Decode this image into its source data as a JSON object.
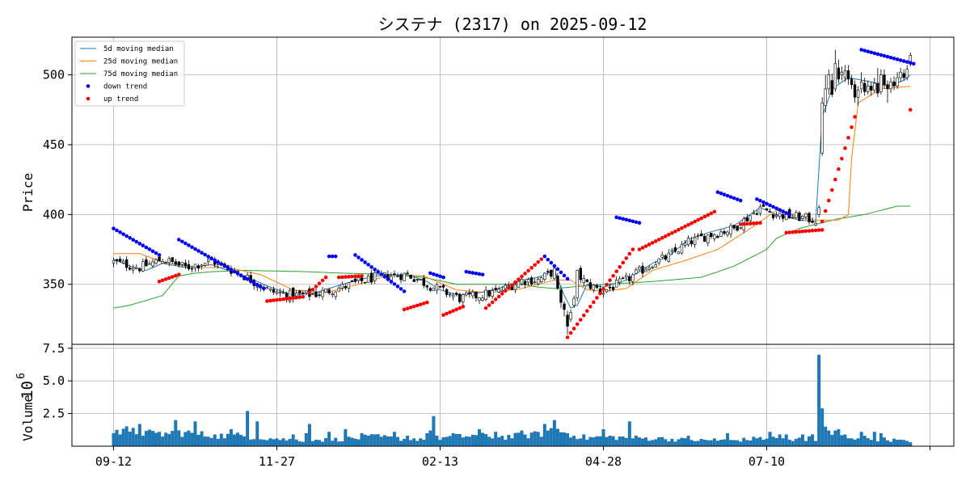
{
  "colors": {
    "ma5": "#1f77b4",
    "ma25": "#ff7f0e",
    "ma75": "#2ca02c",
    "down": "#0000ff",
    "up": "#ff0000",
    "volume": "#1f77b4",
    "grid": "#b0b0b0"
  },
  "chart_data": {
    "type": "candlestick",
    "title": "システナ (2317) on 2025-09-12",
    "price_panel": {
      "ylabel": "Price",
      "ylim": [
        307,
        527
      ],
      "yticks": [
        350,
        400,
        450,
        500
      ],
      "grid": true,
      "legend_position": "upper-left",
      "legend": [
        {
          "key": "ma5",
          "label": " 5d moving median",
          "kind": "line"
        },
        {
          "key": "ma25",
          "label": "25d moving median",
          "kind": "line"
        },
        {
          "key": "ma75",
          "label": "75d moving median",
          "kind": "line"
        },
        {
          "key": "down",
          "label": "down trend",
          "kind": "dot"
        },
        {
          "key": "up",
          "label": "up trend",
          "kind": "dot"
        }
      ]
    },
    "volume_panel": {
      "ylabel": "Volume",
      "scale_label": "10",
      "scale_exp": "6",
      "ylim": [
        0,
        7.8
      ],
      "yticks": [
        2.5,
        5.0,
        7.5
      ],
      "ytick_labels": [
        "2.5",
        "5.0",
        "7.5"
      ],
      "grid": true
    },
    "x": {
      "n": 245,
      "tick_indices": [
        0,
        50,
        100,
        150,
        200,
        250
      ],
      "tick_labels": [
        "09-12",
        "11-27",
        "02-13",
        "04-28",
        "07-10",
        ""
      ]
    },
    "close_anchors": [
      [
        0,
        366
      ],
      [
        8,
        362
      ],
      [
        15,
        368
      ],
      [
        22,
        362
      ],
      [
        30,
        367
      ],
      [
        40,
        356
      ],
      [
        48,
        345
      ],
      [
        55,
        342
      ],
      [
        62,
        343
      ],
      [
        70,
        348
      ],
      [
        80,
        355
      ],
      [
        90,
        357
      ],
      [
        96,
        350
      ],
      [
        100,
        346
      ],
      [
        106,
        340
      ],
      [
        112,
        342
      ],
      [
        118,
        345
      ],
      [
        125,
        353
      ],
      [
        130,
        353
      ],
      [
        137,
        362
      ],
      [
        140,
        362
      ],
      [
        145,
        350
      ],
      [
        150,
        345
      ],
      [
        157,
        353
      ],
      [
        165,
        365
      ],
      [
        170,
        370
      ],
      [
        176,
        380
      ],
      [
        182,
        385
      ],
      [
        190,
        390
      ],
      [
        198,
        405
      ],
      [
        203,
        400
      ],
      [
        210,
        398
      ],
      [
        215,
        396
      ],
      [
        220,
        399
      ],
      [
        225,
        395
      ],
      [
        232,
        500
      ],
      [
        235,
        503
      ],
      [
        242,
        492
      ],
      [
        245,
        510
      ]
    ],
    "candles_special": [
      {
        "i": 136,
        "o": 356,
        "c": 347,
        "h": 358,
        "l": 346
      },
      {
        "i": 137,
        "o": 346,
        "c": 337,
        "h": 349,
        "l": 333
      },
      {
        "i": 138,
        "o": 336,
        "c": 332,
        "h": 338,
        "l": 327
      },
      {
        "i": 139,
        "o": 328,
        "c": 320,
        "h": 331,
        "l": 314
      },
      {
        "i": 140,
        "o": 325,
        "c": 330,
        "h": 332,
        "l": 323
      },
      {
        "i": 141,
        "o": 335,
        "c": 340,
        "h": 342,
        "l": 333
      },
      {
        "i": 216,
        "o": 400,
        "c": 405,
        "h": 407,
        "l": 398
      },
      {
        "i": 217,
        "o": 444,
        "c": 480,
        "h": 484,
        "l": 442
      },
      {
        "i": 218,
        "o": 478,
        "c": 490,
        "h": 500,
        "l": 473
      },
      {
        "i": 219,
        "o": 490,
        "c": 500,
        "h": 504,
        "l": 486
      },
      {
        "i": 220,
        "o": 496,
        "c": 486,
        "h": 501,
        "l": 484
      },
      {
        "i": 221,
        "o": 490,
        "c": 508,
        "h": 518,
        "l": 488
      },
      {
        "i": 222,
        "o": 505,
        "c": 497,
        "h": 511,
        "l": 494
      },
      {
        "i": 223,
        "o": 500,
        "c": 502,
        "h": 506,
        "l": 496
      },
      {
        "i": 224,
        "o": 498,
        "c": 503,
        "h": 507,
        "l": 495
      },
      {
        "i": 225,
        "o": 503,
        "c": 497,
        "h": 507,
        "l": 493
      },
      {
        "i": 226,
        "o": 497,
        "c": 493,
        "h": 500,
        "l": 490
      },
      {
        "i": 227,
        "o": 493,
        "c": 484,
        "h": 496,
        "l": 480
      },
      {
        "i": 228,
        "o": 484,
        "c": 489,
        "h": 492,
        "l": 478
      },
      {
        "i": 229,
        "o": 490,
        "c": 495,
        "h": 502,
        "l": 487
      },
      {
        "i": 230,
        "o": 494,
        "c": 488,
        "h": 498,
        "l": 485
      },
      {
        "i": 231,
        "o": 488,
        "c": 492,
        "h": 496,
        "l": 486
      },
      {
        "i": 232,
        "o": 492,
        "c": 489,
        "h": 495,
        "l": 485
      },
      {
        "i": 233,
        "o": 489,
        "c": 494,
        "h": 498,
        "l": 487
      },
      {
        "i": 234,
        "o": 494,
        "c": 487,
        "h": 505,
        "l": 484
      },
      {
        "i": 235,
        "o": 488,
        "c": 500,
        "h": 504,
        "l": 486
      },
      {
        "i": 236,
        "o": 500,
        "c": 493,
        "h": 504,
        "l": 490
      },
      {
        "i": 237,
        "o": 493,
        "c": 490,
        "h": 496,
        "l": 480
      },
      {
        "i": 238,
        "o": 490,
        "c": 495,
        "h": 498,
        "l": 487
      },
      {
        "i": 239,
        "o": 495,
        "c": 492,
        "h": 499,
        "l": 489
      },
      {
        "i": 240,
        "o": 492,
        "c": 498,
        "h": 502,
        "l": 490
      },
      {
        "i": 241,
        "o": 498,
        "c": 502,
        "h": 505,
        "l": 495
      },
      {
        "i": 242,
        "o": 501,
        "c": 498,
        "h": 504,
        "l": 496
      },
      {
        "i": 243,
        "o": 498,
        "c": 504,
        "h": 507,
        "l": 496
      },
      {
        "i": 244,
        "o": 508,
        "c": 514,
        "h": 516,
        "l": 506
      }
    ],
    "ma5_anchors": [
      [
        0,
        368
      ],
      [
        5,
        363
      ],
      [
        10,
        360
      ],
      [
        15,
        365
      ],
      [
        22,
        362
      ],
      [
        30,
        364
      ],
      [
        40,
        356
      ],
      [
        48,
        348
      ],
      [
        55,
        342
      ],
      [
        62,
        344
      ],
      [
        70,
        350
      ],
      [
        80,
        356
      ],
      [
        90,
        357
      ],
      [
        96,
        352
      ],
      [
        100,
        346
      ],
      [
        106,
        342
      ],
      [
        112,
        344
      ],
      [
        118,
        347
      ],
      [
        125,
        353
      ],
      [
        130,
        355
      ],
      [
        135,
        360
      ],
      [
        138,
        342
      ],
      [
        140,
        333
      ],
      [
        142,
        335
      ],
      [
        145,
        350
      ],
      [
        150,
        348
      ],
      [
        157,
        353
      ],
      [
        165,
        365
      ],
      [
        170,
        370
      ],
      [
        176,
        382
      ],
      [
        182,
        387
      ],
      [
        190,
        392
      ],
      [
        198,
        405
      ],
      [
        203,
        400
      ],
      [
        210,
        396
      ],
      [
        215,
        395
      ],
      [
        217,
        470
      ],
      [
        220,
        490
      ],
      [
        225,
        498
      ],
      [
        232,
        495
      ],
      [
        237,
        492
      ],
      [
        242,
        496
      ],
      [
        245,
        502
      ]
    ],
    "ma25_anchors": [
      [
        0,
        372
      ],
      [
        8,
        372
      ],
      [
        15,
        366
      ],
      [
        25,
        362
      ],
      [
        35,
        362
      ],
      [
        45,
        357
      ],
      [
        55,
        346
      ],
      [
        65,
        344
      ],
      [
        75,
        350
      ],
      [
        85,
        357
      ],
      [
        95,
        356
      ],
      [
        105,
        346
      ],
      [
        115,
        344
      ],
      [
        125,
        347
      ],
      [
        135,
        353
      ],
      [
        140,
        353
      ],
      [
        145,
        346
      ],
      [
        150,
        345
      ],
      [
        157,
        347
      ],
      [
        165,
        360
      ],
      [
        175,
        367
      ],
      [
        185,
        375
      ],
      [
        195,
        390
      ],
      [
        203,
        403
      ],
      [
        210,
        398
      ],
      [
        215,
        396
      ],
      [
        222,
        396
      ],
      [
        225,
        400
      ],
      [
        226,
        440
      ],
      [
        228,
        480
      ],
      [
        235,
        490
      ],
      [
        245,
        492
      ]
    ],
    "ma75_anchors": [
      [
        0,
        333
      ],
      [
        5,
        335
      ],
      [
        15,
        342
      ],
      [
        20,
        356
      ],
      [
        25,
        358
      ],
      [
        30,
        359
      ],
      [
        40,
        360
      ],
      [
        60,
        359
      ],
      [
        70,
        358
      ],
      [
        85,
        357
      ],
      [
        95,
        355
      ],
      [
        105,
        350
      ],
      [
        115,
        350
      ],
      [
        125,
        350
      ],
      [
        130,
        348
      ],
      [
        135,
        347
      ],
      [
        150,
        350
      ],
      [
        165,
        352
      ],
      [
        180,
        355
      ],
      [
        190,
        363
      ],
      [
        200,
        375
      ],
      [
        203,
        383
      ],
      [
        210,
        390
      ],
      [
        215,
        393
      ],
      [
        222,
        397
      ],
      [
        230,
        400
      ],
      [
        240,
        406
      ],
      [
        245,
        406
      ]
    ],
    "down_segments": [
      {
        "start": 0,
        "end": 14,
        "from": 390,
        "to": 371
      },
      {
        "start": 20,
        "end": 46,
        "from": 382,
        "to": 347
      },
      {
        "start": 66,
        "end": 68,
        "from": 370,
        "to": 370
      },
      {
        "start": 74,
        "end": 89,
        "from": 371,
        "to": 345
      },
      {
        "start": 97,
        "end": 101,
        "from": 358,
        "to": 355
      },
      {
        "start": 108,
        "end": 113,
        "from": 359,
        "to": 357
      },
      {
        "start": 132,
        "end": 139,
        "from": 370,
        "to": 354
      },
      {
        "start": 154,
        "end": 161,
        "from": 398,
        "to": 394
      },
      {
        "start": 185,
        "end": 192,
        "from": 416,
        "to": 410
      },
      {
        "start": 197,
        "end": 207,
        "from": 411,
        "to": 400
      },
      {
        "start": 229,
        "end": 245,
        "from": 518,
        "to": 508
      }
    ],
    "up_segments": [
      {
        "start": 14,
        "end": 20,
        "from": 352,
        "to": 357
      },
      {
        "start": 47,
        "end": 58,
        "from": 338,
        "to": 341
      },
      {
        "start": 60,
        "end": 65,
        "from": 344,
        "to": 355
      },
      {
        "start": 69,
        "end": 76,
        "from": 355,
        "to": 356
      },
      {
        "start": 89,
        "end": 96,
        "from": 332,
        "to": 337
      },
      {
        "start": 101,
        "end": 107,
        "from": 328,
        "to": 334
      },
      {
        "start": 114,
        "end": 131,
        "from": 333,
        "to": 368
      },
      {
        "start": 139,
        "end": 159,
        "from": 312,
        "to": 375
      },
      {
        "start": 161,
        "end": 184,
        "from": 375,
        "to": 402
      },
      {
        "start": 192,
        "end": 198,
        "from": 393,
        "to": 394
      },
      {
        "start": 206,
        "end": 217,
        "from": 387,
        "to": 389
      },
      {
        "start": 217,
        "end": 227,
        "from": 395,
        "to": 470
      },
      {
        "start": 244,
        "end": 244,
        "from": 475,
        "to": 475
      }
    ],
    "volume_anchors": [
      [
        0,
        1.0
      ],
      [
        5,
        1.4
      ],
      [
        10,
        1.1
      ],
      [
        15,
        1.0
      ],
      [
        20,
        1.2
      ],
      [
        30,
        0.9
      ],
      [
        40,
        0.9
      ],
      [
        50,
        0.6
      ],
      [
        60,
        0.5
      ],
      [
        70,
        0.6
      ],
      [
        80,
        0.8
      ],
      [
        90,
        0.6
      ],
      [
        100,
        0.7
      ],
      [
        110,
        0.9
      ],
      [
        120,
        0.8
      ],
      [
        130,
        1.0
      ],
      [
        135,
        1.5
      ],
      [
        140,
        1.0
      ],
      [
        145,
        0.7
      ],
      [
        150,
        0.8
      ],
      [
        160,
        0.7
      ],
      [
        170,
        0.6
      ],
      [
        180,
        0.5
      ],
      [
        190,
        0.5
      ],
      [
        200,
        0.7
      ],
      [
        210,
        0.6
      ],
      [
        215,
        0.9
      ],
      [
        220,
        1.0
      ],
      [
        225,
        0.8
      ],
      [
        230,
        0.7
      ],
      [
        240,
        0.5
      ],
      [
        245,
        0.3
      ]
    ],
    "volume_spikes": [
      [
        0,
        1.0
      ],
      [
        2,
        0.9
      ],
      [
        6,
        1.4
      ],
      [
        8,
        1.7
      ],
      [
        14,
        1.1
      ],
      [
        19,
        2.0
      ],
      [
        25,
        1.9
      ],
      [
        31,
        0.9
      ],
      [
        36,
        1.3
      ],
      [
        41,
        2.7
      ],
      [
        44,
        1.9
      ],
      [
        50,
        0.6
      ],
      [
        55,
        0.9
      ],
      [
        59,
        1.0
      ],
      [
        60,
        1.7
      ],
      [
        62,
        0.5
      ],
      [
        66,
        1.1
      ],
      [
        71,
        1.3
      ],
      [
        76,
        1.0
      ],
      [
        80,
        0.9
      ],
      [
        86,
        1.1
      ],
      [
        90,
        0.8
      ],
      [
        96,
        1.0
      ],
      [
        97,
        1.2
      ],
      [
        98,
        2.3
      ],
      [
        104,
        1.0
      ],
      [
        112,
        1.3
      ],
      [
        117,
        1.1
      ],
      [
        125,
        1.2
      ],
      [
        130,
        1.1
      ],
      [
        132,
        1.7
      ],
      [
        135,
        2.0
      ],
      [
        141,
        0.8
      ],
      [
        150,
        1.3
      ],
      [
        158,
        1.9
      ],
      [
        168,
        0.7
      ],
      [
        176,
        0.8
      ],
      [
        184,
        0.6
      ],
      [
        188,
        1.0
      ],
      [
        198,
        0.7
      ],
      [
        201,
        1.1
      ],
      [
        204,
        0.9
      ],
      [
        206,
        0.9
      ],
      [
        208,
        0.4
      ],
      [
        211,
        0.9
      ],
      [
        212,
        0.4
      ],
      [
        215,
        0.4
      ],
      [
        216,
        7.0
      ],
      [
        217,
        2.9
      ],
      [
        218,
        1.5
      ],
      [
        219,
        1.2
      ],
      [
        221,
        1.2
      ],
      [
        222,
        1.3
      ],
      [
        229,
        1.1
      ],
      [
        233,
        1.1
      ],
      [
        235,
        1.0
      ],
      [
        243,
        0.4
      ],
      [
        244,
        0.3
      ]
    ]
  }
}
